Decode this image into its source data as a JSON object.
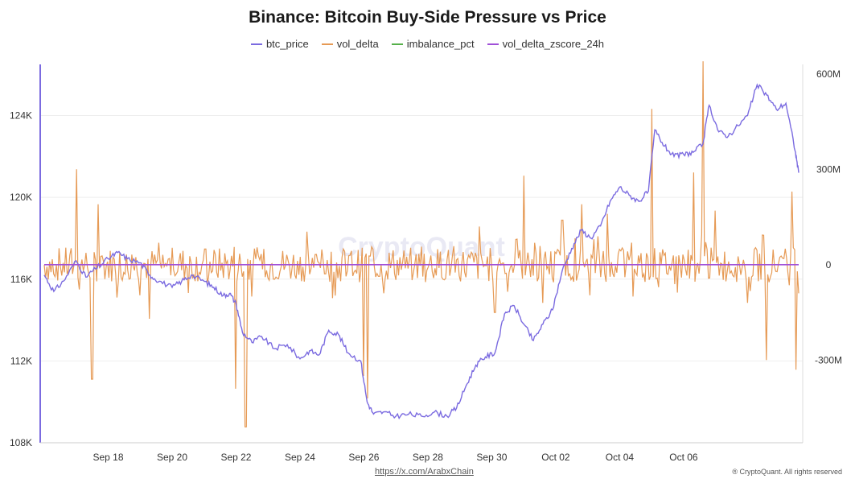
{
  "header": {
    "title": "Binance: Bitcoin Buy-Side Pressure vs Price"
  },
  "footer": {
    "link": "https://x.com/ArabxChain",
    "copyright": "® CryptoQuant. All rights reserved",
    "watermark": "CryptoQuant"
  },
  "chart_data": {
    "type": "line",
    "title": "Binance: Bitcoin Buy-Side Pressure vs Price",
    "legend_position": "top-center",
    "grid": true,
    "series": [
      {
        "name": "btc_price",
        "color": "#7b6be0",
        "axis": "left"
      },
      {
        "name": "vol_delta",
        "color": "#e69a55",
        "axis": "right"
      },
      {
        "name": "imbalance_pct",
        "color": "#56b04a",
        "axis": "right"
      },
      {
        "name": "vol_delta_zscore_24h",
        "color": "#a050d8",
        "axis": "right"
      }
    ],
    "x_range": [
      "2025-09-16",
      "2025-10-07"
    ],
    "x_ticks": [
      "Sep 18",
      "Sep 20",
      "Sep 22",
      "Sep 24",
      "Sep 26",
      "Sep 28",
      "Sep 30",
      "Oct 02",
      "Oct 04",
      "Oct 06"
    ],
    "y_left": {
      "ticks": [
        "108K",
        "112K",
        "116K",
        "120K",
        "124K"
      ],
      "tick_values": [
        108000,
        112000,
        116000,
        120000,
        124000
      ],
      "range": [
        108000,
        126500
      ]
    },
    "y_right": {
      "ticks": [
        "600M",
        "300M",
        "0",
        "-300M"
      ],
      "tick_values": [
        600000000,
        300000000,
        0,
        -300000000
      ],
      "range": [
        -560000000,
        630000000
      ]
    },
    "btc_price_points": [
      [
        0,
        116200
      ],
      [
        0.3,
        115400
      ],
      [
        0.6,
        115900
      ],
      [
        1.0,
        116900
      ],
      [
        1.3,
        116100
      ],
      [
        1.6,
        116500
      ],
      [
        2.0,
        117000
      ],
      [
        2.3,
        117300
      ],
      [
        2.6,
        117000
      ],
      [
        3.0,
        116800
      ],
      [
        3.3,
        116200
      ],
      [
        3.6,
        115900
      ],
      [
        4.0,
        115600
      ],
      [
        4.3,
        115900
      ],
      [
        4.6,
        116200
      ],
      [
        5.0,
        115900
      ],
      [
        5.3,
        115600
      ],
      [
        5.6,
        115200
      ],
      [
        5.8,
        115300
      ],
      [
        6.0,
        114800
      ],
      [
        6.2,
        113400
      ],
      [
        6.5,
        112900
      ],
      [
        6.8,
        113200
      ],
      [
        7.2,
        112600
      ],
      [
        7.6,
        112800
      ],
      [
        8.0,
        112100
      ],
      [
        8.3,
        112500
      ],
      [
        8.6,
        112300
      ],
      [
        8.9,
        113500
      ],
      [
        9.2,
        113300
      ],
      [
        9.5,
        112400
      ],
      [
        9.9,
        112000
      ],
      [
        10.1,
        110000
      ],
      [
        10.3,
        109400
      ],
      [
        10.6,
        109500
      ],
      [
        11.0,
        109300
      ],
      [
        11.4,
        109400
      ],
      [
        11.8,
        109300
      ],
      [
        12.2,
        109500
      ],
      [
        12.6,
        109300
      ],
      [
        12.9,
        109700
      ],
      [
        13.2,
        110800
      ],
      [
        13.5,
        111800
      ],
      [
        13.8,
        112200
      ],
      [
        14.1,
        112400
      ],
      [
        14.4,
        114300
      ],
      [
        14.7,
        114700
      ],
      [
        15.0,
        113800
      ],
      [
        15.3,
        113000
      ],
      [
        15.6,
        113800
      ],
      [
        15.9,
        114500
      ],
      [
        16.2,
        116400
      ],
      [
        16.5,
        117500
      ],
      [
        16.8,
        118400
      ],
      [
        17.1,
        118000
      ],
      [
        17.4,
        118600
      ],
      [
        17.7,
        119800
      ],
      [
        18.0,
        120500
      ],
      [
        18.3,
        120100
      ],
      [
        18.6,
        119800
      ],
      [
        18.9,
        120300
      ],
      [
        19.1,
        123300
      ],
      [
        19.4,
        122500
      ],
      [
        19.7,
        122000
      ],
      [
        20.0,
        122100
      ],
      [
        20.3,
        122200
      ],
      [
        20.6,
        122600
      ],
      [
        20.8,
        124500
      ],
      [
        21.1,
        123200
      ],
      [
        21.4,
        123000
      ],
      [
        21.7,
        123500
      ],
      [
        22.0,
        124000
      ],
      [
        22.3,
        125500
      ],
      [
        22.6,
        125000
      ],
      [
        22.9,
        124300
      ],
      [
        23.2,
        124600
      ],
      [
        23.5,
        122200
      ],
      [
        23.6,
        121200
      ]
    ],
    "vol_delta_spikes_M": [
      [
        1.0,
        300
      ],
      [
        1.5,
        -360
      ],
      [
        1.7,
        190
      ],
      [
        3.3,
        -170
      ],
      [
        6.0,
        -390
      ],
      [
        6.3,
        -510
      ],
      [
        6.5,
        -100
      ],
      [
        10.0,
        -350
      ],
      [
        10.1,
        -420
      ],
      [
        13.6,
        120
      ],
      [
        14.1,
        -150
      ],
      [
        15.0,
        280
      ],
      [
        15.6,
        -120
      ],
      [
        16.2,
        140
      ],
      [
        16.8,
        190
      ],
      [
        17.2,
        80
      ],
      [
        17.6,
        160
      ],
      [
        18.4,
        -100
      ],
      [
        19.0,
        490
      ],
      [
        20.3,
        290
      ],
      [
        20.6,
        640
      ],
      [
        21.0,
        170
      ],
      [
        22.0,
        -120
      ],
      [
        22.6,
        -300
      ],
      [
        23.4,
        230
      ],
      [
        23.5,
        -330
      ],
      [
        23.6,
        -90
      ]
    ]
  }
}
